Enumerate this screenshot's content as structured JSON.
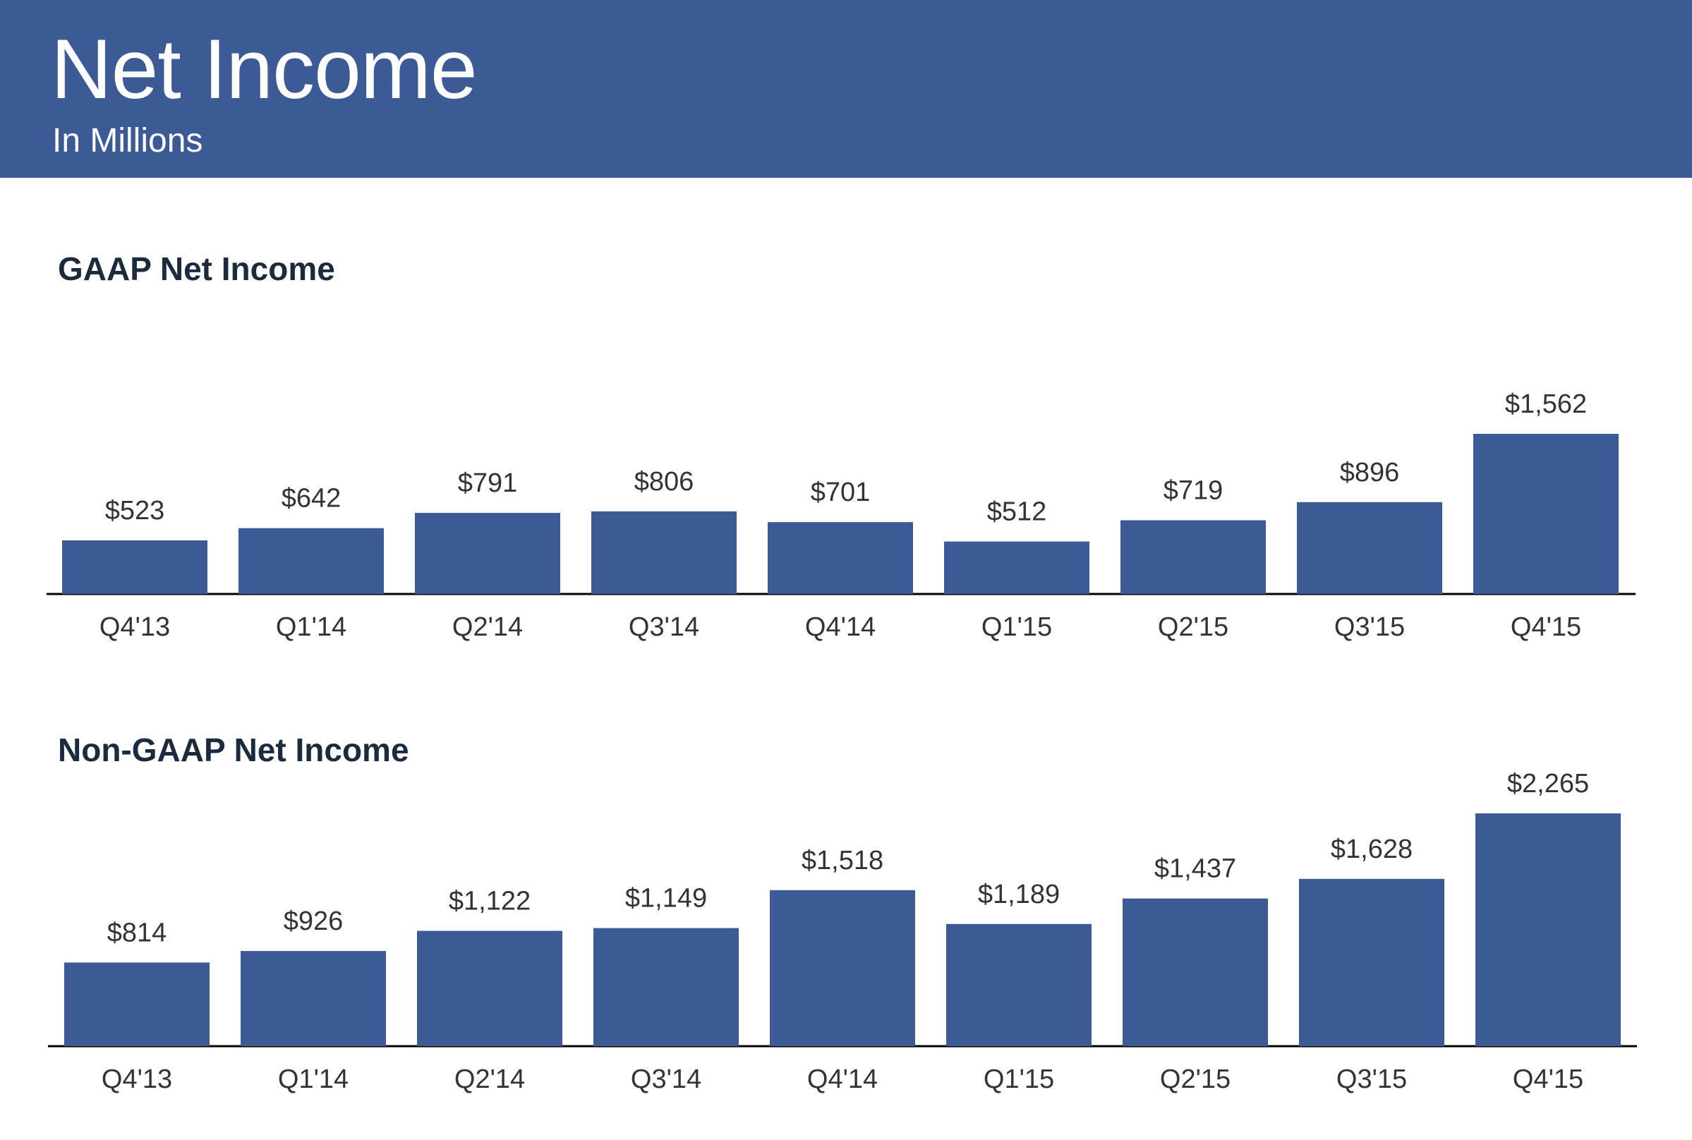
{
  "header": {
    "title": "Net Income",
    "subtitle": "In Millions"
  },
  "colors": {
    "header_bg": "#3c5a96",
    "bar": "#3c5a96",
    "heading_text": "#1c2a40"
  },
  "chart_data": [
    {
      "type": "bar",
      "title": "GAAP Net Income",
      "categories": [
        "Q4'13",
        "Q1'14",
        "Q2'14",
        "Q3'14",
        "Q4'14",
        "Q1'15",
        "Q2'15",
        "Q3'15",
        "Q4'15"
      ],
      "values": [
        523,
        642,
        791,
        806,
        701,
        512,
        719,
        896,
        1562
      ],
      "value_labels": [
        "$523",
        "$642",
        "$791",
        "$806",
        "$701",
        "$512",
        "$719",
        "$896",
        "$1,562"
      ],
      "xlabel": "",
      "ylabel": "",
      "ylim": [
        0,
        1562
      ],
      "grid": false,
      "legend": "none"
    },
    {
      "type": "bar",
      "title": "Non-GAAP Net Income",
      "categories": [
        "Q4'13",
        "Q1'14",
        "Q2'14",
        "Q3'14",
        "Q4'14",
        "Q1'15",
        "Q2'15",
        "Q3'15",
        "Q4'15"
      ],
      "values": [
        814,
        926,
        1122,
        1149,
        1518,
        1189,
        1437,
        1628,
        2265
      ],
      "value_labels": [
        "$814",
        "$926",
        "$1,122",
        "$1,149",
        "$1,518",
        "$1,189",
        "$1,437",
        "$1,628",
        "$2,265"
      ],
      "xlabel": "",
      "ylabel": "",
      "ylim": [
        0,
        2265
      ],
      "grid": false,
      "legend": "none"
    }
  ]
}
